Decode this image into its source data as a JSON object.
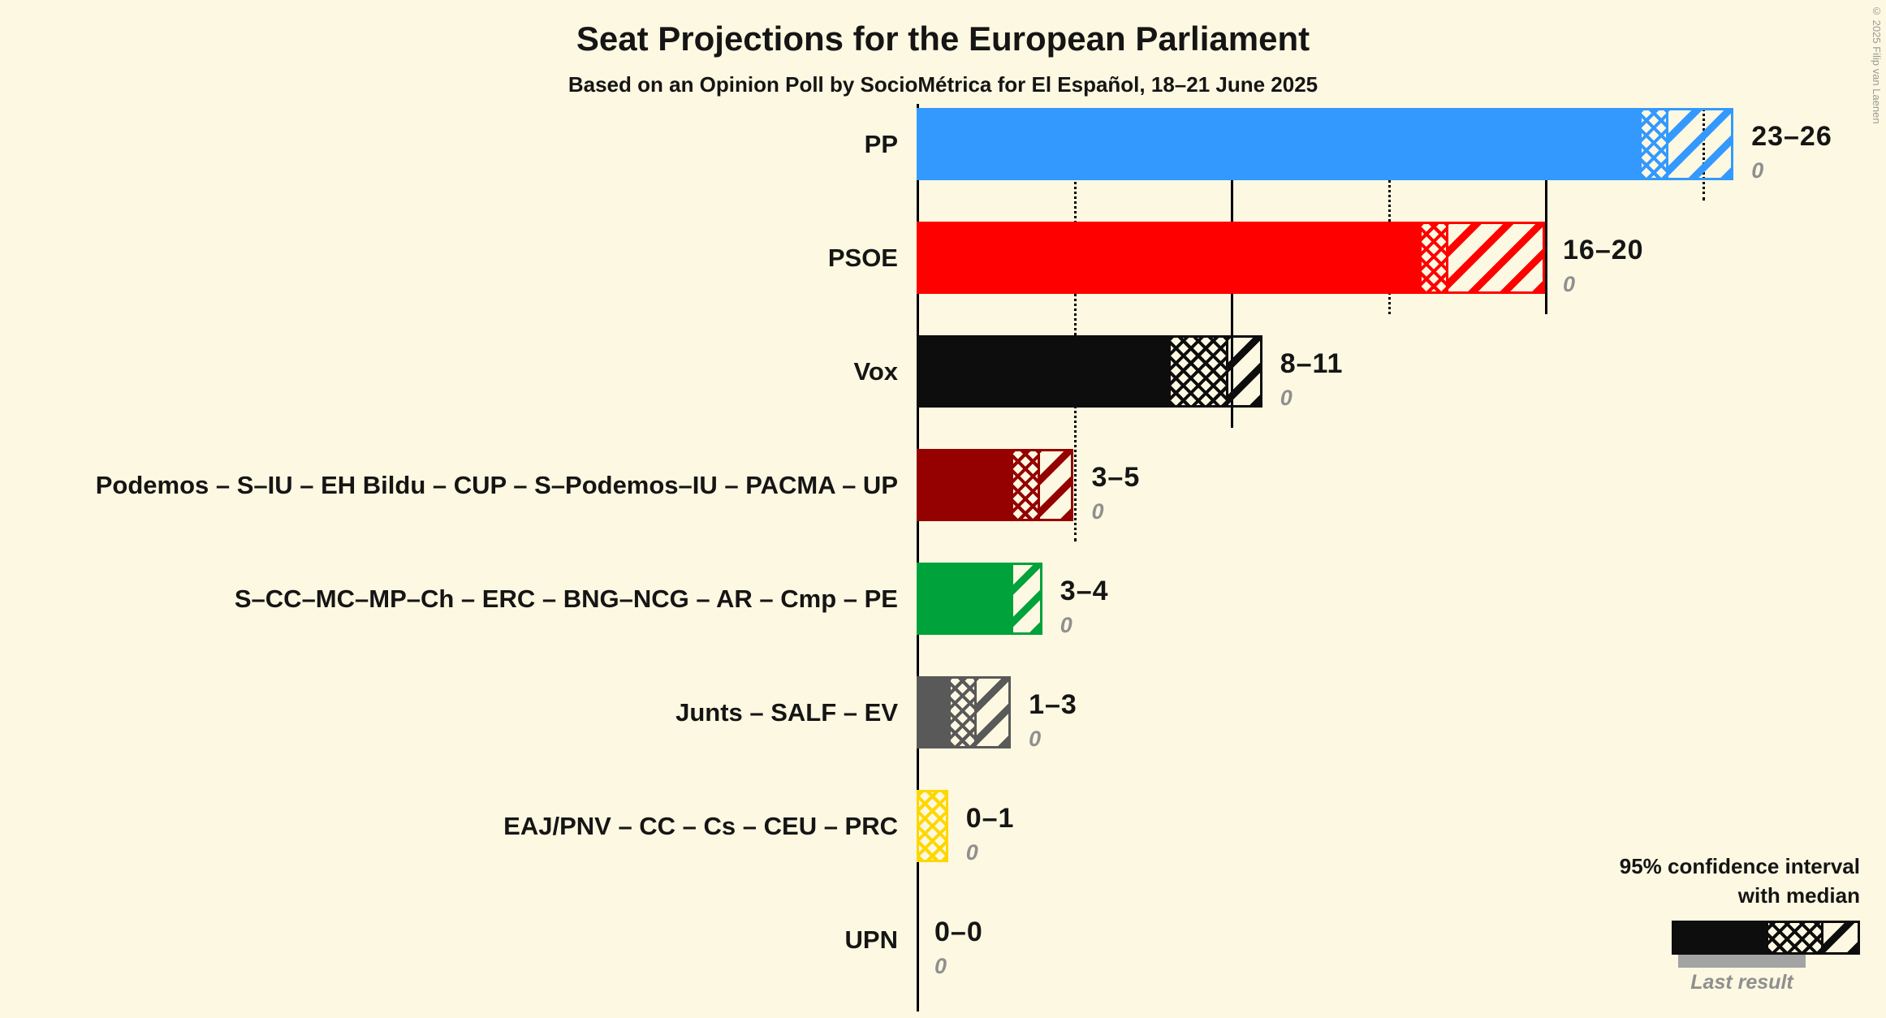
{
  "header": {
    "title": "Seat Projections for the European Parliament",
    "subtitle": "Based on an Opinion Poll by SocioMétrica for El Español, 18–21 June 2025"
  },
  "copyright": "© 2025 Filip van Laenen",
  "legend": {
    "ci_line1": "95% confidence interval",
    "ci_line2": "with median",
    "last_result_label": "Last result"
  },
  "chart_data": {
    "type": "bar",
    "orientation": "horizontal",
    "x_axis": {
      "min": 0,
      "max": 27,
      "gridlines": [
        {
          "value": 5,
          "style": "dotted"
        },
        {
          "value": 10,
          "style": "solid"
        },
        {
          "value": 15,
          "style": "dotted"
        },
        {
          "value": 20,
          "style": "solid"
        },
        {
          "value": 25,
          "style": "dotted"
        }
      ]
    },
    "bars": [
      {
        "label": "PP",
        "color": "#3399FF",
        "low": 23,
        "median": 24,
        "high": 26,
        "range_label": "23–26",
        "last_result": "0"
      },
      {
        "label": "PSOE",
        "color": "#FF0000",
        "low": 16,
        "median": 17,
        "high": 20,
        "range_label": "16–20",
        "last_result": "0"
      },
      {
        "label": "Vox",
        "color": "#0D0D0D",
        "low": 8,
        "median": 10,
        "high": 11,
        "range_label": "8–11",
        "last_result": "0"
      },
      {
        "label": "Podemos – S–IU – EH Bildu – CUP – S–Podemos–IU – PACMA – UP",
        "color": "#950000",
        "low": 3,
        "median": 4,
        "high": 5,
        "range_label": "3–5",
        "last_result": "0"
      },
      {
        "label": "S–CC–MC–MP–Ch – ERC – BNG–NCG – AR – Cmp – PE",
        "color": "#00A23C",
        "low": 3,
        "median": 3,
        "high": 4,
        "range_label": "3–4",
        "last_result": "0"
      },
      {
        "label": "Junts – SALF – EV",
        "color": "#595959",
        "low": 1,
        "median": 2,
        "high": 3,
        "range_label": "1–3",
        "last_result": "0"
      },
      {
        "label": "EAJ/PNV – CC – Cs – CEU – PRC",
        "color": "#FFD700",
        "low": 0,
        "median": 1,
        "high": 1,
        "range_label": "0–1",
        "last_result": "0"
      },
      {
        "label": "UPN",
        "color": "#1A1A1A",
        "low": 0,
        "median": 0,
        "high": 0,
        "range_label": "0–0",
        "last_result": "0"
      }
    ]
  }
}
